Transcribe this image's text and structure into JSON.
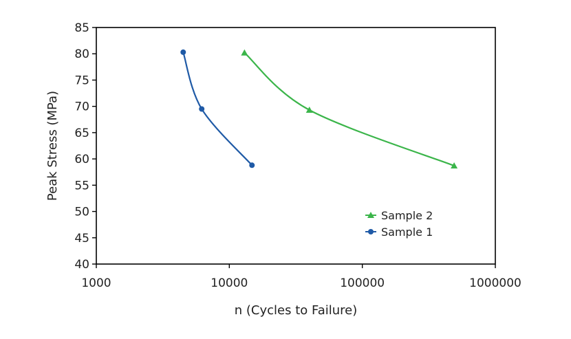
{
  "chart_data": {
    "type": "line",
    "title": "",
    "xlabel": "n (Cycles to Failure)",
    "ylabel": "Peak Stress (MPa)",
    "x_scale": "log",
    "xlim": [
      1000,
      1000000
    ],
    "ylim": [
      40,
      85
    ],
    "x_ticks": [
      1000,
      10000,
      100000,
      1000000
    ],
    "x_tick_labels": [
      "1000",
      "10000",
      "100000",
      "1000000"
    ],
    "y_ticks": [
      40,
      45,
      50,
      55,
      60,
      65,
      70,
      75,
      80,
      85
    ],
    "y_tick_labels": [
      "40",
      "45",
      "50",
      "55",
      "60",
      "65",
      "70",
      "75",
      "80",
      "85"
    ],
    "grid": false,
    "legend_position": "lower-right",
    "series": [
      {
        "name": "Sample 2",
        "color": "#3bb54a",
        "marker": "triangle",
        "x": [
          13000,
          40000,
          490000
        ],
        "y": [
          80.2,
          69.3,
          58.7
        ]
      },
      {
        "name": "Sample 1",
        "color": "#1f5aa6",
        "marker": "circle",
        "x": [
          4500,
          6200,
          14800
        ],
        "y": [
          80.3,
          69.5,
          58.8
        ]
      }
    ]
  }
}
